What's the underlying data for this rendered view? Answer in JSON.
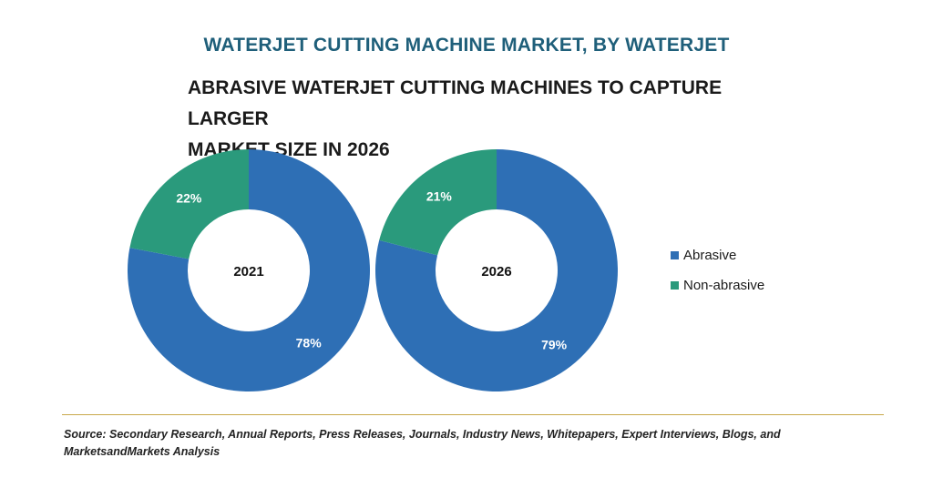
{
  "colors": {
    "title": "#1f5f7a",
    "abrasive": "#2e6fb5",
    "non_abrasive": "#2a9a7c"
  },
  "chart_data": [
    {
      "type": "pie",
      "title": "WATERJET CUTTING MACHINE MARKET, BY WATERJET",
      "subtitle_lines": [
        "ABRASIVE WATERJET CUTTING MACHINES TO CAPTURE LARGER",
        "MARKET SIZE IN 2026"
      ],
      "center_label": "2021",
      "donut": true,
      "slices": [
        {
          "name": "Abrasive",
          "value": 78,
          "label": "78%"
        },
        {
          "name": "Non-abrasive",
          "value": 22,
          "label": "22%"
        }
      ],
      "legend_position": "right"
    },
    {
      "type": "pie",
      "center_label": "2026",
      "donut": true,
      "slices": [
        {
          "name": "Abrasive",
          "value": 79,
          "label": "79%"
        },
        {
          "name": "Non-abrasive",
          "value": 21,
          "label": "21%"
        }
      ],
      "legend_position": "right"
    }
  ],
  "legend": [
    {
      "name": "Abrasive"
    },
    {
      "name": "Non-abrasive"
    }
  ],
  "source_text": "Source: Secondary Research, Annual Reports, Press Releases, Journals, Industry News, Whitepapers, Expert Interviews, Blogs, and MarketsandMarkets Analysis"
}
